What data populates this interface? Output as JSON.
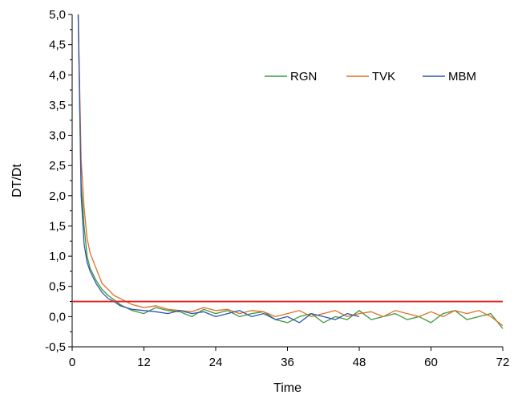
{
  "chart_data": {
    "type": "line",
    "title": "",
    "xlabel": "Time",
    "ylabel": "DT/Dt",
    "xlim": [
      0,
      72
    ],
    "ylim": [
      -0.5,
      5.0
    ],
    "x_ticks": [
      0,
      12,
      24,
      36,
      48,
      60,
      72
    ],
    "x_tick_labels": [
      "0",
      "12",
      "24",
      "36",
      "48",
      "60",
      "72"
    ],
    "y_ticks": [
      -0.5,
      0.0,
      0.5,
      1.0,
      1.5,
      2.0,
      2.5,
      3.0,
      3.5,
      4.0,
      4.5,
      5.0
    ],
    "y_tick_labels": [
      "-0,5",
      "0,0",
      "0,5",
      "1,0",
      "1,5",
      "2,0",
      "2,5",
      "3,0",
      "3,5",
      "4,0",
      "4,5",
      "5,0"
    ],
    "grid": false,
    "legend_position": "top-right",
    "series": [
      {
        "name": "RGN",
        "color": "#3a9a3a",
        "x": [
          1,
          1.5,
          2,
          2.5,
          3,
          4,
          5,
          6,
          7,
          8,
          9,
          10,
          12,
          14,
          16,
          18,
          20,
          22,
          24,
          26,
          28,
          30,
          32,
          34,
          36,
          38,
          40,
          42,
          44,
          46,
          48,
          50,
          52,
          54,
          56,
          58,
          60,
          62,
          64,
          66,
          68,
          70,
          72
        ],
        "y": [
          5.0,
          2.2,
          1.5,
          1.0,
          0.8,
          0.6,
          0.45,
          0.35,
          0.28,
          0.2,
          0.15,
          0.1,
          0.05,
          0.15,
          0.1,
          0.08,
          0.0,
          0.12,
          0.05,
          0.1,
          0.0,
          0.05,
          0.08,
          -0.05,
          -0.1,
          0.0,
          0.05,
          -0.1,
          0.0,
          -0.05,
          0.1,
          -0.05,
          0.0,
          0.05,
          -0.05,
          0.0,
          -0.1,
          0.05,
          0.1,
          -0.05,
          0.0,
          0.05,
          -0.2
        ]
      },
      {
        "name": "TVK",
        "color": "#e0702a",
        "x": [
          1,
          1.5,
          2,
          2.5,
          3,
          4,
          5,
          6,
          7,
          8,
          9,
          10,
          12,
          14,
          16,
          18,
          20,
          22,
          24,
          26,
          28,
          30,
          32,
          34,
          36,
          38,
          40,
          42,
          44,
          46,
          48,
          50,
          52,
          54,
          56,
          58,
          60,
          62,
          64,
          66,
          68,
          70,
          72
        ],
        "y": [
          5.0,
          2.6,
          1.8,
          1.3,
          1.05,
          0.8,
          0.55,
          0.45,
          0.35,
          0.3,
          0.25,
          0.2,
          0.15,
          0.18,
          0.12,
          0.1,
          0.08,
          0.15,
          0.1,
          0.12,
          0.05,
          0.1,
          0.08,
          0.0,
          0.05,
          0.1,
          0.0,
          0.05,
          0.1,
          0.0,
          0.05,
          0.08,
          0.0,
          0.1,
          0.05,
          0.0,
          0.08,
          0.0,
          0.1,
          0.05,
          0.1,
          0.0,
          -0.15
        ]
      },
      {
        "name": "MBM",
        "color": "#2f56b0",
        "x": [
          1,
          1.5,
          2,
          2.5,
          3,
          4,
          5,
          6,
          7,
          8,
          9,
          10,
          12,
          14,
          16,
          18,
          20,
          22,
          24,
          26,
          28,
          30,
          32,
          34,
          36,
          38,
          40,
          42,
          44,
          46,
          48
        ],
        "y": [
          5.0,
          2.0,
          1.2,
          0.9,
          0.75,
          0.55,
          0.4,
          0.3,
          0.25,
          0.18,
          0.15,
          0.12,
          0.1,
          0.08,
          0.05,
          0.1,
          0.05,
          0.08,
          0.0,
          0.05,
          0.1,
          0.0,
          0.05,
          -0.05,
          0.0,
          -0.1,
          0.05,
          0.0,
          -0.05,
          0.05,
          0.0
        ]
      }
    ],
    "reference_lines": [
      {
        "y": 0.25,
        "color": "#e02020"
      }
    ]
  }
}
